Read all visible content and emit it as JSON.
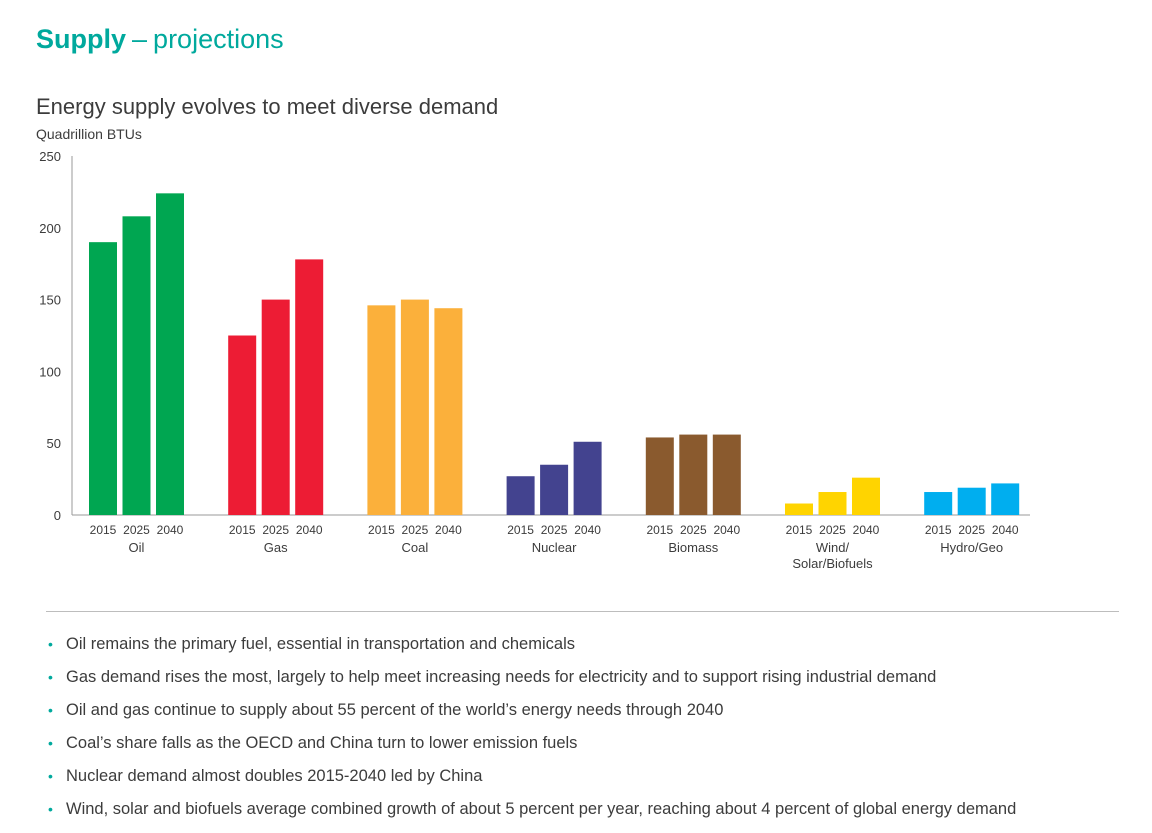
{
  "header": {
    "title_bold": "Supply",
    "title_sep": "–",
    "title_rest": "projections"
  },
  "chart_data": {
    "type": "bar",
    "title": "Energy supply evolves to meet diverse demand",
    "ylabel": "Quadrillion BTUs",
    "ylim": [
      0,
      250
    ],
    "yticks": [
      0,
      50,
      100,
      150,
      200,
      250
    ],
    "grid": false,
    "legend": "none",
    "years": [
      "2015",
      "2025",
      "2040"
    ],
    "groups": [
      {
        "name": "Oil",
        "color": "#00a651",
        "values": [
          190,
          208,
          224
        ]
      },
      {
        "name": "Gas",
        "color": "#ed1c34",
        "values": [
          125,
          150,
          178
        ]
      },
      {
        "name": "Coal",
        "color": "#fbb03b",
        "values": [
          146,
          150,
          144
        ]
      },
      {
        "name": "Nuclear",
        "color": "#43438f",
        "values": [
          27,
          35,
          51
        ]
      },
      {
        "name": "Biomass",
        "color": "#8a5a2e",
        "values": [
          54,
          56,
          56
        ]
      },
      {
        "name": "Wind/\nSolar/Biofuels",
        "color": "#ffd400",
        "values": [
          8,
          16,
          26
        ]
      },
      {
        "name": "Hydro/Geo",
        "color": "#00aeef",
        "values": [
          16,
          19,
          22
        ]
      }
    ]
  },
  "bullets": [
    "Oil remains the primary fuel, essential in transportation and chemicals",
    "Gas demand rises the most, largely to help meet increasing needs for electricity and to support rising industrial demand",
    "Oil and gas continue to supply about 55 percent of the world’s energy needs through 2040",
    "Coal’s share falls as the OECD and China turn to lower emission fuels",
    "Nuclear demand almost doubles 2015-2040 led by China",
    "Wind, solar and biofuels average combined growth of about 5 percent per year, reaching about 4 percent of global energy demand"
  ],
  "bullet_glyph": "•"
}
